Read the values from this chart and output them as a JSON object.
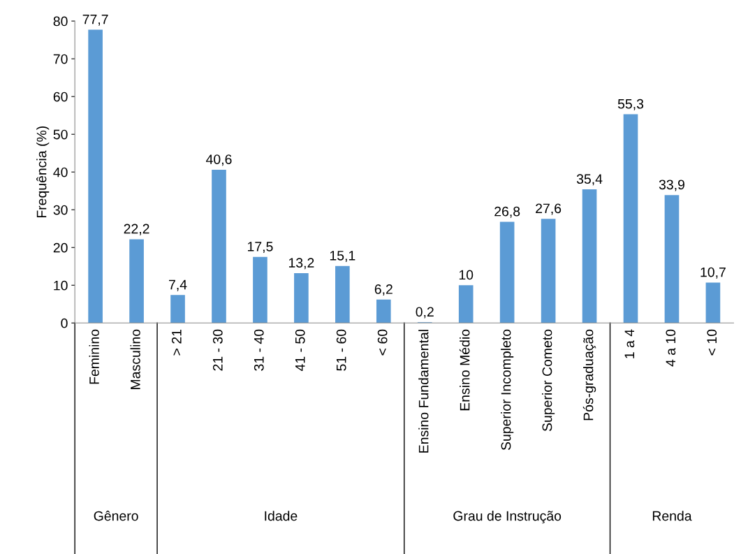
{
  "chart_data": {
    "type": "bar",
    "ylabel": "Frequência (%)",
    "categories": [
      "Feminino",
      "Masculino",
      "> 21",
      "21 - 30",
      "31 - 40",
      "41 - 50",
      "51 - 60",
      "< 60",
      "Ensino Fundamental",
      "Ensino Médio",
      "Superior Incompleto",
      "Superior Cometo",
      "Pós-graduação",
      "1 a 4",
      "4 a 10",
      "< 10"
    ],
    "values": [
      77.7,
      22.2,
      7.4,
      40.6,
      17.5,
      13.2,
      15.1,
      6.2,
      0.2,
      10,
      26.8,
      27.6,
      35.4,
      55.3,
      33.9,
      10.7
    ],
    "value_labels": [
      "77,7",
      "22,2",
      "7,4",
      "40,6",
      "17,5",
      "13,2",
      "15,1",
      "6,2",
      "0,2",
      "10",
      "26,8",
      "27,6",
      "35,4",
      "55,3",
      "33,9",
      "10,7"
    ],
    "color": "#5b9bd5",
    "ylim": [
      0,
      80
    ],
    "yticks": [
      0,
      10,
      20,
      30,
      40,
      50,
      60,
      70,
      80
    ],
    "annotations": [
      "Gênero",
      "Idade",
      "Grau de Instrução",
      "Renda"
    ],
    "grid": false,
    "legend": false
  }
}
